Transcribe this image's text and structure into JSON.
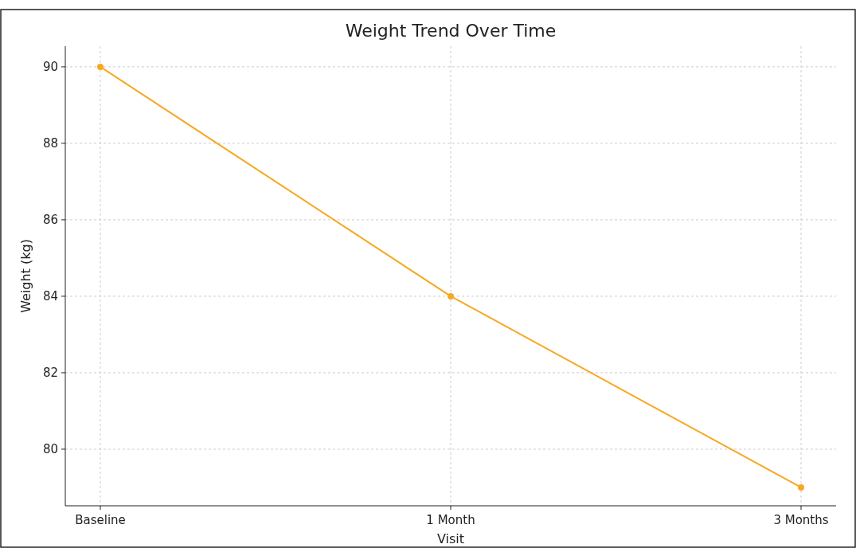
{
  "chart_data": {
    "type": "line",
    "title": "Weight Trend Over Time",
    "xlabel": "Visit",
    "ylabel": "Weight (kg)",
    "categories": [
      "Baseline",
      "1 Month",
      "3 Months"
    ],
    "series": [
      {
        "color": "#f7a823",
        "values": [
          90,
          84,
          79
        ]
      }
    ],
    "ylim": [
      78.52,
      90.54
    ],
    "yticks": [
      80,
      82,
      84,
      86,
      88,
      90
    ],
    "grid": true,
    "marker": "circle",
    "line_style": "solid"
  }
}
